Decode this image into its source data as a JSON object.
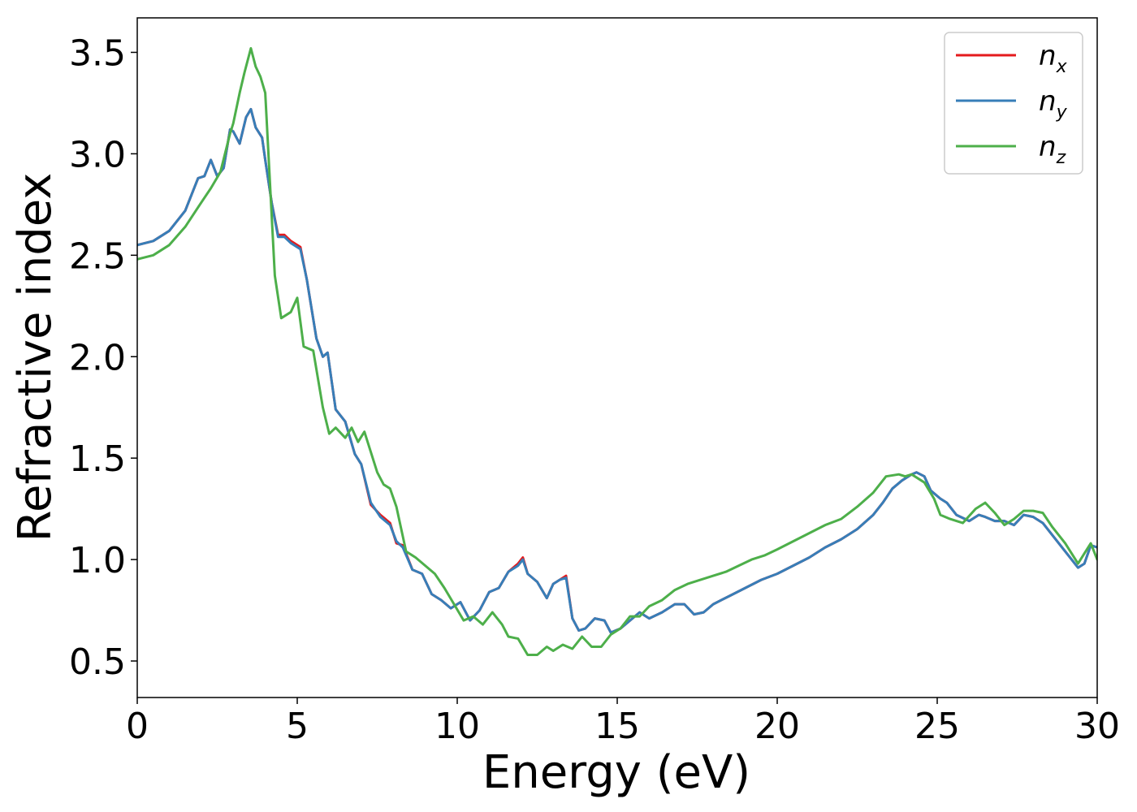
{
  "chart_data": {
    "type": "line",
    "title": "",
    "xlabel": "Energy (eV)",
    "ylabel": "Refractive index",
    "xlim": [
      0,
      30
    ],
    "ylim": [
      0.32,
      3.67
    ],
    "x_ticks": [
      0,
      5,
      10,
      15,
      20,
      25,
      30
    ],
    "y_ticks": [
      0.5,
      1.0,
      1.5,
      2.0,
      2.5,
      3.0,
      3.5
    ],
    "grid": false,
    "legend_position": "top-right",
    "series": [
      {
        "name": "n_x",
        "name_base": "n",
        "name_sub": "x",
        "color": "#e41a1c",
        "x": [
          0,
          0.5,
          1.0,
          1.5,
          1.9,
          2.1,
          2.3,
          2.5,
          2.7,
          2.9,
          3.0,
          3.2,
          3.4,
          3.55,
          3.7,
          3.9,
          4.0,
          4.2,
          4.4,
          4.6,
          4.8,
          5.1,
          5.3,
          5.6,
          5.8,
          5.95,
          6.2,
          6.5,
          6.8,
          7.0,
          7.3,
          7.6,
          7.9,
          8.1,
          8.3,
          8.6,
          8.9,
          9.2,
          9.5,
          9.8,
          10.1,
          10.4,
          10.7,
          11.0,
          11.3,
          11.6,
          11.9,
          12.05,
          12.2,
          12.5,
          12.8,
          13.0,
          13.2,
          13.4,
          13.6,
          13.8,
          14.0,
          14.3,
          14.6,
          14.8,
          15.1,
          15.4,
          15.7,
          16.0,
          16.4,
          16.8,
          17.1,
          17.4,
          17.7,
          18.0,
          18.5,
          19.0,
          19.5,
          20.0,
          20.5,
          21.0,
          21.5,
          22.0,
          22.5,
          23.0,
          23.3,
          23.6,
          23.9,
          24.2,
          24.35,
          24.6,
          24.8,
          25.1,
          25.3,
          25.6,
          26.0,
          26.3,
          26.5,
          26.8,
          27.1,
          27.4,
          27.7,
          28.0,
          28.3,
          28.6,
          29.0,
          29.4,
          29.6,
          29.8,
          30.0
        ],
        "y": [
          2.55,
          2.57,
          2.62,
          2.72,
          2.88,
          2.89,
          2.97,
          2.89,
          2.93,
          3.12,
          3.11,
          3.05,
          3.18,
          3.22,
          3.13,
          3.08,
          2.97,
          2.76,
          2.6,
          2.6,
          2.57,
          2.54,
          2.38,
          2.09,
          2.0,
          2.02,
          1.74,
          1.68,
          1.52,
          1.47,
          1.27,
          1.22,
          1.18,
          1.08,
          1.07,
          0.95,
          0.93,
          0.83,
          0.8,
          0.76,
          0.79,
          0.7,
          0.75,
          0.84,
          0.86,
          0.94,
          0.98,
          1.01,
          0.93,
          0.89,
          0.81,
          0.88,
          0.9,
          0.92,
          0.71,
          0.65,
          0.66,
          0.71,
          0.7,
          0.64,
          0.66,
          0.7,
          0.74,
          0.71,
          0.74,
          0.78,
          0.78,
          0.73,
          0.74,
          0.78,
          0.82,
          0.86,
          0.9,
          0.93,
          0.97,
          1.01,
          1.06,
          1.1,
          1.15,
          1.22,
          1.28,
          1.35,
          1.39,
          1.42,
          1.43,
          1.41,
          1.34,
          1.3,
          1.28,
          1.22,
          1.19,
          1.22,
          1.21,
          1.19,
          1.19,
          1.17,
          1.22,
          1.21,
          1.18,
          1.12,
          1.04,
          0.96,
          0.98,
          1.07,
          1.06
        ]
      },
      {
        "name": "n_y",
        "name_base": "n",
        "name_sub": "y",
        "color": "#377eb8",
        "x": [
          0,
          0.5,
          1.0,
          1.5,
          1.9,
          2.1,
          2.3,
          2.5,
          2.7,
          2.9,
          3.0,
          3.2,
          3.4,
          3.55,
          3.7,
          3.9,
          4.0,
          4.2,
          4.4,
          4.6,
          4.8,
          5.1,
          5.3,
          5.6,
          5.8,
          5.95,
          6.2,
          6.5,
          6.8,
          7.0,
          7.3,
          7.6,
          7.9,
          8.1,
          8.3,
          8.6,
          8.9,
          9.2,
          9.5,
          9.8,
          10.1,
          10.4,
          10.7,
          11.0,
          11.3,
          11.6,
          11.9,
          12.05,
          12.2,
          12.5,
          12.8,
          13.0,
          13.2,
          13.4,
          13.6,
          13.8,
          14.0,
          14.3,
          14.6,
          14.8,
          15.1,
          15.4,
          15.7,
          16.0,
          16.4,
          16.8,
          17.1,
          17.4,
          17.7,
          18.0,
          18.5,
          19.0,
          19.5,
          20.0,
          20.5,
          21.0,
          21.5,
          22.0,
          22.5,
          23.0,
          23.3,
          23.6,
          23.9,
          24.2,
          24.35,
          24.6,
          24.8,
          25.1,
          25.3,
          25.6,
          26.0,
          26.3,
          26.5,
          26.8,
          27.1,
          27.4,
          27.7,
          28.0,
          28.3,
          28.6,
          29.0,
          29.4,
          29.6,
          29.8,
          30.0
        ],
        "y": [
          2.55,
          2.57,
          2.62,
          2.72,
          2.88,
          2.89,
          2.97,
          2.89,
          2.93,
          3.12,
          3.11,
          3.05,
          3.18,
          3.22,
          3.13,
          3.08,
          2.97,
          2.76,
          2.59,
          2.59,
          2.56,
          2.53,
          2.38,
          2.09,
          2.0,
          2.02,
          1.74,
          1.68,
          1.52,
          1.47,
          1.28,
          1.21,
          1.17,
          1.09,
          1.06,
          0.95,
          0.93,
          0.83,
          0.8,
          0.76,
          0.79,
          0.7,
          0.75,
          0.84,
          0.86,
          0.94,
          0.97,
          1.0,
          0.93,
          0.89,
          0.81,
          0.88,
          0.9,
          0.91,
          0.71,
          0.65,
          0.66,
          0.71,
          0.7,
          0.64,
          0.66,
          0.7,
          0.74,
          0.71,
          0.74,
          0.78,
          0.78,
          0.73,
          0.74,
          0.78,
          0.82,
          0.86,
          0.9,
          0.93,
          0.97,
          1.01,
          1.06,
          1.1,
          1.15,
          1.22,
          1.28,
          1.35,
          1.39,
          1.42,
          1.43,
          1.41,
          1.34,
          1.3,
          1.28,
          1.22,
          1.19,
          1.22,
          1.21,
          1.19,
          1.19,
          1.17,
          1.22,
          1.21,
          1.18,
          1.12,
          1.04,
          0.96,
          0.98,
          1.07,
          1.06
        ]
      },
      {
        "name": "n_z",
        "name_base": "n",
        "name_sub": "z",
        "color": "#4daf4a",
        "x": [
          0,
          0.5,
          1.0,
          1.5,
          2.0,
          2.3,
          2.6,
          2.9,
          3.0,
          3.2,
          3.35,
          3.55,
          3.7,
          3.85,
          4.0,
          4.15,
          4.3,
          4.5,
          4.8,
          5.0,
          5.2,
          5.5,
          5.8,
          6.0,
          6.2,
          6.5,
          6.7,
          6.9,
          7.1,
          7.3,
          7.5,
          7.7,
          7.9,
          8.1,
          8.4,
          8.7,
          9.0,
          9.3,
          9.6,
          9.9,
          10.2,
          10.5,
          10.8,
          11.1,
          11.4,
          11.6,
          11.9,
          12.2,
          12.5,
          12.8,
          13.0,
          13.3,
          13.6,
          13.9,
          14.2,
          14.5,
          14.8,
          15.1,
          15.4,
          15.7,
          16.0,
          16.4,
          16.8,
          17.2,
          17.6,
          18.0,
          18.4,
          18.8,
          19.2,
          19.6,
          20.0,
          20.5,
          21.0,
          21.5,
          22.0,
          22.5,
          23.0,
          23.4,
          23.8,
          24.0,
          24.2,
          24.6,
          24.9,
          25.1,
          25.4,
          25.8,
          26.2,
          26.5,
          26.8,
          27.1,
          27.4,
          27.7,
          28.0,
          28.3,
          28.6,
          29.0,
          29.4,
          29.6,
          29.8,
          30.0
        ],
        "y": [
          2.48,
          2.5,
          2.55,
          2.64,
          2.76,
          2.83,
          2.91,
          3.1,
          3.15,
          3.3,
          3.4,
          3.52,
          3.43,
          3.38,
          3.3,
          2.85,
          2.4,
          2.19,
          2.22,
          2.29,
          2.05,
          2.03,
          1.75,
          1.62,
          1.65,
          1.6,
          1.65,
          1.58,
          1.63,
          1.53,
          1.43,
          1.37,
          1.35,
          1.26,
          1.04,
          1.01,
          0.97,
          0.93,
          0.86,
          0.78,
          0.7,
          0.72,
          0.68,
          0.74,
          0.68,
          0.62,
          0.61,
          0.53,
          0.53,
          0.57,
          0.55,
          0.58,
          0.56,
          0.62,
          0.57,
          0.57,
          0.63,
          0.66,
          0.72,
          0.72,
          0.77,
          0.8,
          0.85,
          0.88,
          0.9,
          0.92,
          0.94,
          0.97,
          1.0,
          1.02,
          1.05,
          1.09,
          1.13,
          1.17,
          1.2,
          1.26,
          1.33,
          1.41,
          1.42,
          1.41,
          1.42,
          1.38,
          1.3,
          1.22,
          1.2,
          1.18,
          1.25,
          1.28,
          1.23,
          1.17,
          1.2,
          1.24,
          1.24,
          1.23,
          1.16,
          1.08,
          0.98,
          1.03,
          1.08,
          1.0
        ]
      }
    ]
  }
}
